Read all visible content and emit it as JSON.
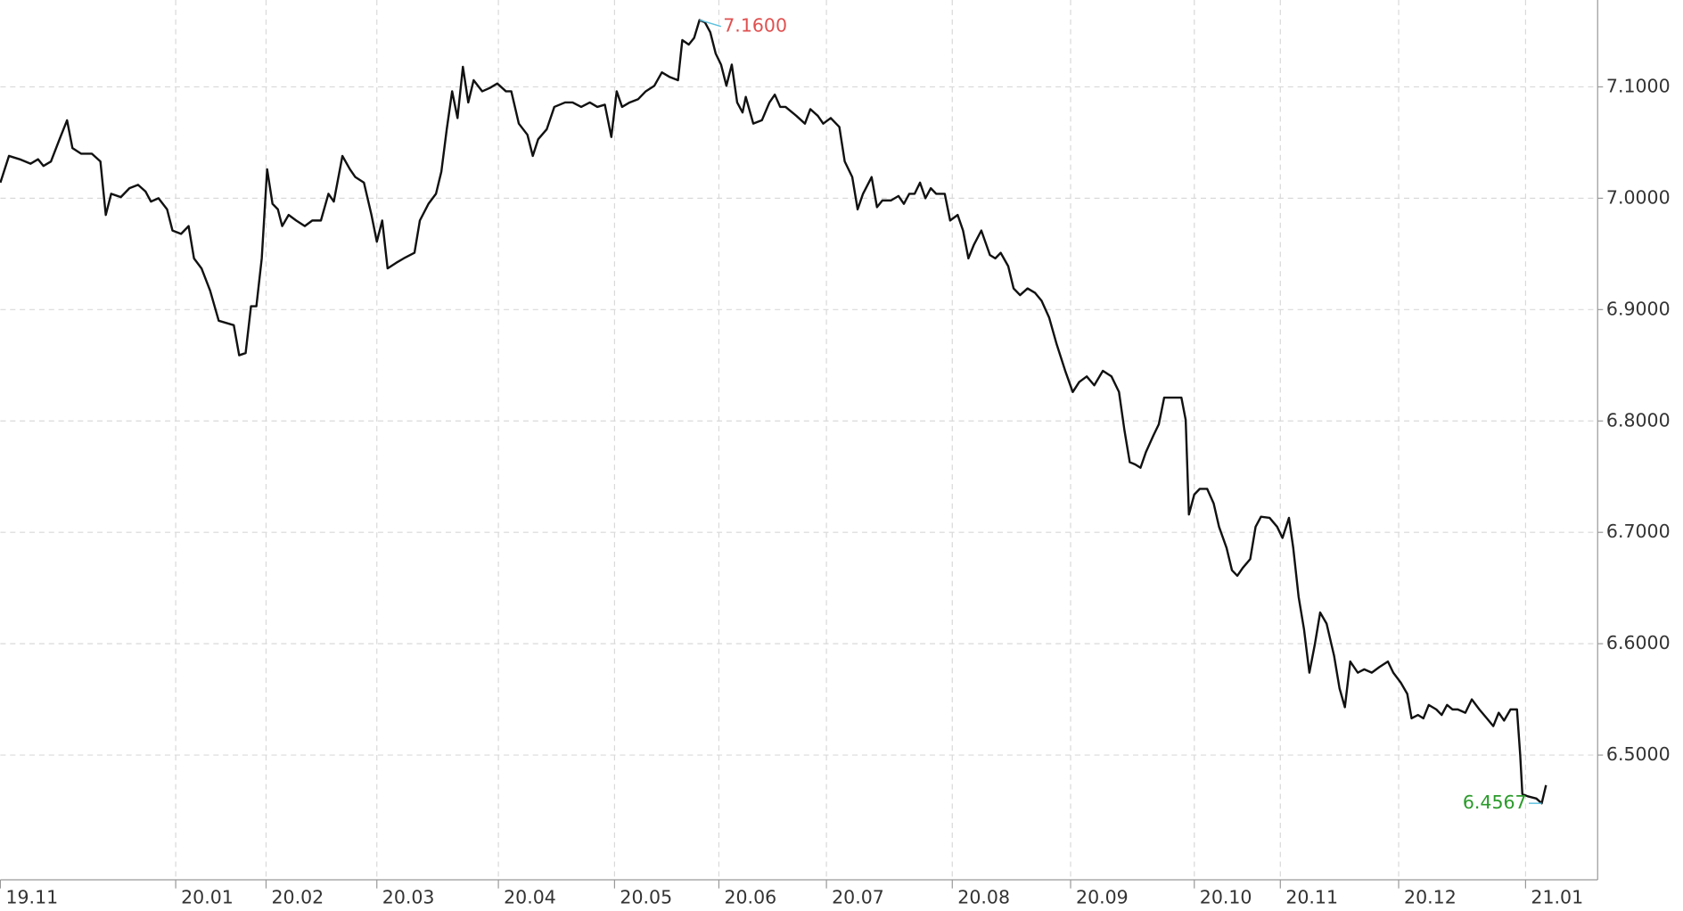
{
  "chart_data": {
    "type": "line",
    "xlim": [
      0,
      297
    ],
    "xticks": [
      {
        "value": 0,
        "label": "19.11"
      },
      {
        "value": 32.6,
        "label": "20.01"
      },
      {
        "value": 49.4,
        "label": "20.02"
      },
      {
        "value": 70,
        "label": "20.03"
      },
      {
        "value": 92.6,
        "label": "20.04"
      },
      {
        "value": 114.2,
        "label": "20.05"
      },
      {
        "value": 133.6,
        "label": "20.06"
      },
      {
        "value": 153.6,
        "label": "20.07"
      },
      {
        "value": 177,
        "label": "20.08"
      },
      {
        "value": 199,
        "label": "20.09"
      },
      {
        "value": 222,
        "label": "20.10"
      },
      {
        "value": 238,
        "label": "20.11"
      },
      {
        "value": 260,
        "label": "20.12"
      },
      {
        "value": 283.6,
        "label": "21.01"
      }
    ],
    "ylim": [
      6.388,
      7.178
    ],
    "yticks": [
      {
        "value": 6.5,
        "label": "6.5000"
      },
      {
        "value": 6.6,
        "label": "6.6000"
      },
      {
        "value": 6.7,
        "label": "6.7000"
      },
      {
        "value": 6.8,
        "label": "6.8000"
      },
      {
        "value": 6.9,
        "label": "6.9000"
      },
      {
        "value": 7.0,
        "label": "7.0000"
      },
      {
        "value": 7.1,
        "label": "7.1000"
      }
    ],
    "grid": true,
    "series": [
      {
        "color": "#111111",
        "x": [
          0,
          1.6,
          3.6,
          5.6,
          7,
          8,
          9.4,
          11,
          12.4,
          13.4,
          15,
          17,
          18.6,
          19.6,
          20.6,
          22.4,
          24,
          25.6,
          27,
          28,
          29.4,
          31,
          32,
          33.6,
          35,
          36,
          37.4,
          39,
          40.6,
          42,
          43.4,
          44.4,
          45.6,
          46.6,
          47.6,
          48.6,
          49.6,
          50.6,
          51.6,
          52.4,
          53.6,
          55,
          56.6,
          58,
          59.6,
          61,
          62,
          63.6,
          65,
          66,
          67.6,
          69,
          70,
          71,
          72,
          73.6,
          75,
          77,
          78,
          79.6,
          81,
          82,
          83,
          84,
          85,
          86,
          87,
          88,
          89.6,
          91,
          92.4,
          94,
          95,
          96.4,
          98,
          99,
          100,
          101.6,
          103,
          105,
          106.4,
          108,
          109.6,
          111,
          112.4,
          113.6,
          114.6,
          115.6,
          117,
          118.6,
          120,
          121.6,
          123,
          124.4,
          126,
          126.8,
          128,
          129,
          130,
          131,
          132,
          133,
          134,
          135,
          136,
          137,
          138,
          138.6,
          140,
          141.6,
          143,
          144,
          145,
          146,
          148,
          149.6,
          150.6,
          152,
          153,
          154.4,
          156,
          157,
          158.4,
          159.4,
          160.4,
          162,
          163,
          164,
          165.6,
          167,
          168,
          169,
          170,
          171,
          172,
          173,
          174,
          175.6,
          176.6,
          178,
          179,
          180,
          181,
          182.4,
          184,
          185,
          186,
          187.4,
          188.4,
          189.6,
          191,
          192.4,
          193.6,
          195,
          196.4,
          198,
          199.4,
          200.6,
          202,
          203.4,
          205,
          206.6,
          208,
          209,
          210,
          211,
          212,
          213,
          214.4,
          215.4,
          216.4,
          218,
          219.6,
          220.4,
          221,
          222,
          223,
          224.4,
          225.6,
          226.6,
          228,
          229,
          230,
          231,
          232.4,
          233.4,
          234.4,
          236,
          237.4,
          238.4,
          239.6,
          240.4,
          241.4,
          242.4,
          243.4,
          244.4,
          245.4,
          246.6,
          248,
          249,
          250,
          251,
          252.4,
          253.6,
          255,
          256.4,
          258,
          259,
          260.4,
          261.6,
          262.4,
          263.6,
          264.6,
          265.6,
          267,
          268,
          269,
          270,
          271,
          272.4,
          273.6,
          275,
          276.4,
          277.6,
          278.6,
          279.6,
          280.8,
          282,
          282.6,
          283,
          284,
          285.6,
          286.6,
          287.4
        ],
        "values": [
          7.014,
          7.038,
          7.035,
          7.031,
          7.035,
          7.029,
          7.033,
          7.053,
          7.07,
          7.045,
          7.04,
          7.04,
          7.033,
          6.985,
          7.004,
          7.001,
          7.009,
          7.012,
          7.006,
          6.997,
          7.0,
          6.99,
          6.971,
          6.968,
          6.975,
          6.946,
          6.937,
          6.917,
          6.89,
          6.888,
          6.886,
          6.859,
          6.861,
          6.903,
          6.903,
          6.946,
          7.026,
          6.995,
          6.99,
          6.975,
          6.985,
          6.98,
          6.975,
          6.98,
          6.98,
          7.004,
          6.997,
          7.038,
          7.026,
          7.019,
          7.014,
          6.985,
          6.961,
          6.98,
          6.937,
          6.942,
          6.946,
          6.951,
          6.98,
          6.995,
          7.004,
          7.024,
          7.062,
          7.096,
          7.072,
          7.118,
          7.086,
          7.106,
          7.096,
          7.099,
          7.103,
          7.096,
          7.096,
          7.067,
          7.057,
          7.038,
          7.053,
          7.062,
          7.082,
          7.086,
          7.086,
          7.082,
          7.086,
          7.082,
          7.084,
          7.055,
          7.096,
          7.082,
          7.086,
          7.089,
          7.096,
          7.101,
          7.113,
          7.109,
          7.106,
          7.142,
          7.138,
          7.144,
          7.16,
          7.158,
          7.149,
          7.13,
          7.12,
          7.101,
          7.12,
          7.086,
          7.077,
          7.091,
          7.067,
          7.07,
          7.086,
          7.093,
          7.082,
          7.082,
          7.074,
          7.067,
          7.08,
          7.074,
          7.067,
          7.072,
          7.064,
          7.033,
          7.019,
          6.99,
          7.004,
          7.019,
          6.992,
          6.998,
          6.998,
          7.002,
          6.995,
          7.004,
          7.004,
          7.014,
          7.0,
          7.009,
          7.004,
          7.004,
          6.98,
          6.985,
          6.971,
          6.946,
          6.958,
          6.971,
          6.949,
          6.946,
          6.951,
          6.939,
          6.919,
          6.913,
          6.919,
          6.915,
          6.908,
          6.893,
          6.869,
          6.845,
          6.826,
          6.835,
          6.84,
          6.832,
          6.845,
          6.84,
          6.826,
          6.792,
          6.763,
          6.761,
          6.758,
          6.772,
          6.787,
          6.797,
          6.821,
          6.821,
          6.821,
          6.801,
          6.716,
          6.734,
          6.739,
          6.739,
          6.726,
          6.705,
          6.686,
          6.666,
          6.661,
          6.668,
          6.676,
          6.705,
          6.714,
          6.713,
          6.705,
          6.695,
          6.713,
          6.686,
          6.642,
          6.613,
          6.574,
          6.599,
          6.628,
          6.618,
          6.589,
          6.56,
          6.543,
          6.584,
          6.574,
          6.577,
          6.574,
          6.579,
          6.584,
          6.574,
          6.565,
          6.555,
          6.533,
          6.536,
          6.533,
          6.545,
          6.541,
          6.536,
          6.545,
          6.541,
          6.541,
          6.538,
          6.55,
          6.541,
          6.533,
          6.526,
          6.538,
          6.531,
          6.541,
          6.541,
          6.5,
          6.465,
          6.463,
          6.461,
          6.4567,
          6.473
        ]
      }
    ],
    "annotations": [
      {
        "text": "7.1600",
        "x": 130,
        "value": 7.16,
        "color": "#e05050"
      },
      {
        "text": "6.4567",
        "x": 286.6,
        "value": 6.4567,
        "color": "#2a9a2a"
      }
    ]
  }
}
